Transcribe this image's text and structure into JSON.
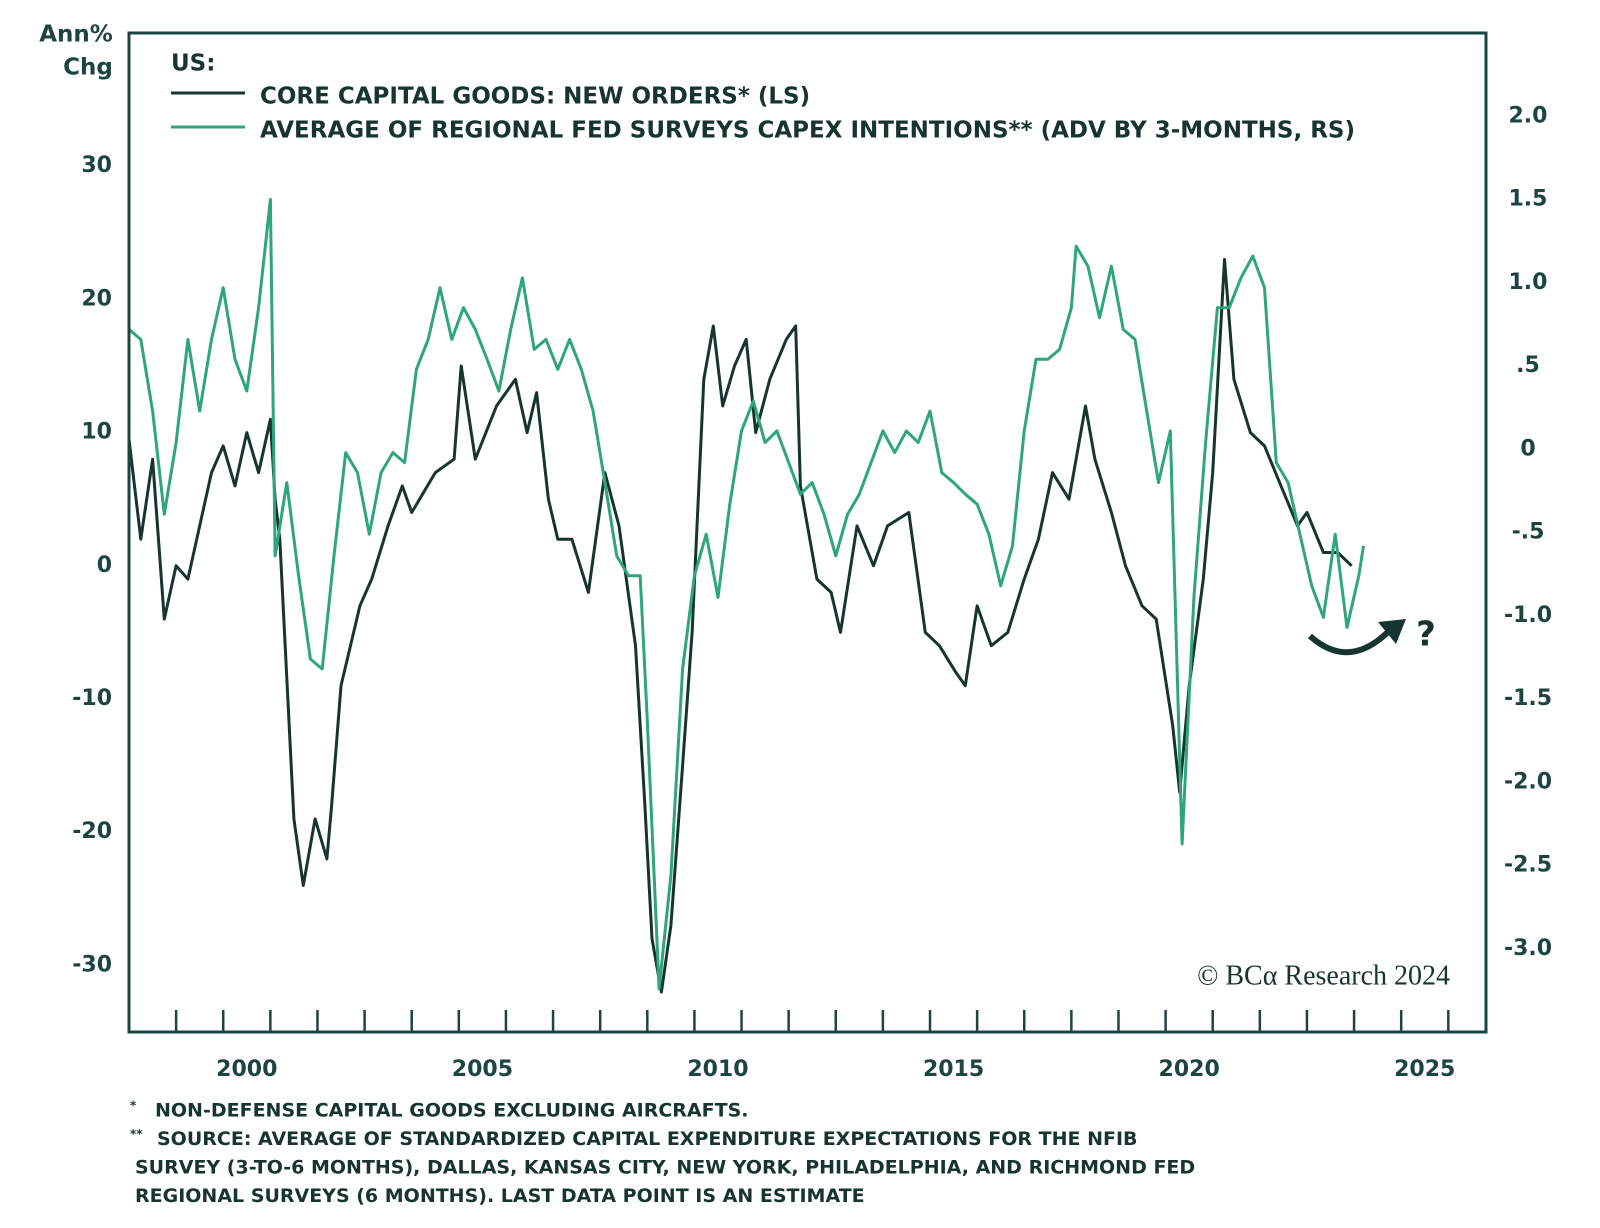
{
  "chart_data": {
    "type": "line",
    "title": "US:",
    "ylabel": [
      "Ann%",
      "Chg"
    ],
    "xlim": [
      1998,
      2026.8
    ],
    "xticks": [
      {
        "value": 2000.5,
        "label": "2000"
      },
      {
        "value": 2005.5,
        "label": "2005"
      },
      {
        "value": 2010.5,
        "label": "2010"
      },
      {
        "value": 2015.5,
        "label": "2015"
      },
      {
        "value": 2020.5,
        "label": "2020"
      },
      {
        "value": 2025.5,
        "label": "2025"
      }
    ],
    "xtick_marks": [
      1999,
      2000,
      2001,
      2002,
      2003,
      2004,
      2005,
      2006,
      2007,
      2008,
      2009,
      2010,
      2011,
      2012,
      2013,
      2014,
      2015,
      2016,
      2017,
      2018,
      2019,
      2020,
      2021,
      2022,
      2023,
      2024,
      2025,
      2026
    ],
    "ylim": [
      -35,
      40
    ],
    "yticks": [
      -30,
      -20,
      -10,
      0,
      10,
      20,
      30
    ],
    "y2lim": [
      -3.5,
      2.5
    ],
    "y2ticks": [
      {
        "value": -3.0,
        "label": "-3.0"
      },
      {
        "value": -2.5,
        "label": "-2.5"
      },
      {
        "value": -2.0,
        "label": "-2.0"
      },
      {
        "value": -1.5,
        "label": "-1.5"
      },
      {
        "value": -1.0,
        "label": "-1.0"
      },
      {
        "value": -0.5,
        "label": "-.5"
      },
      0,
      {
        "value": 0.5,
        "label": ".5"
      },
      {
        "value": 1.0,
        "label": "1.0"
      },
      {
        "value": 1.5,
        "label": "1.5"
      },
      {
        "value": 2.0,
        "label": "2.0"
      }
    ],
    "series": [
      {
        "name": "CORE CAPITAL GOODS: NEW ORDERS* (LS)",
        "color": "#17352f",
        "x": [
          1998.0,
          1998.25,
          1998.5,
          1998.75,
          1999.0,
          1999.25,
          1999.5,
          1999.75,
          2000.0,
          2000.25,
          2000.5,
          2000.75,
          2001.0,
          2001.1,
          2001.2,
          2001.3,
          2001.5,
          2001.7,
          2001.95,
          2002.2,
          2002.3,
          2002.5,
          2002.7,
          2002.9,
          2003.15,
          2003.5,
          2003.8,
          2004.0,
          2004.5,
          2004.9,
          2005.05,
          2005.35,
          2005.8,
          2006.2,
          2006.45,
          2006.65,
          2006.9,
          2007.1,
          2007.4,
          2007.75,
          2008.1,
          2008.4,
          2008.75,
          2008.95,
          2009.1,
          2009.3,
          2009.5,
          2009.75,
          2009.95,
          2010.2,
          2010.4,
          2010.6,
          2010.85,
          2011.1,
          2011.3,
          2011.6,
          2011.95,
          2012.15,
          2012.25,
          2012.6,
          2012.9,
          2013.1,
          2013.45,
          2013.8,
          2014.1,
          2014.55,
          2014.9,
          2015.2,
          2015.55,
          2015.75,
          2016.0,
          2016.3,
          2016.65,
          2017.0,
          2017.3,
          2017.6,
          2017.95,
          2018.3,
          2018.5,
          2018.85,
          2019.15,
          2019.5,
          2019.8,
          2020.15,
          2020.3,
          2020.5,
          2020.8,
          2021.0,
          2021.25,
          2021.45,
          2021.8,
          2022.1,
          2022.45,
          2022.8,
          2023.0,
          2023.35,
          2023.65,
          2023.95
        ],
        "values": [
          9.5,
          2,
          8,
          -4,
          0,
          -1,
          3,
          7,
          9,
          6,
          10,
          7,
          11,
          5,
          2,
          -5,
          -19,
          -24,
          -19,
          -22,
          -18,
          -9,
          -6,
          -3,
          -1,
          3,
          6,
          4,
          7,
          8,
          15,
          8,
          12,
          14,
          10,
          13,
          5,
          2,
          2,
          -2,
          7,
          3,
          -6,
          -18,
          -28,
          -32,
          -27,
          -15,
          -5,
          14,
          18,
          12,
          15,
          17,
          10,
          14,
          17,
          18,
          6,
          -1,
          -2,
          -5,
          3,
          0,
          3,
          4,
          -5,
          -6,
          -8,
          -9,
          -3,
          -6,
          -5,
          -1,
          2,
          7,
          5,
          12,
          8,
          4,
          0,
          -3,
          -4,
          -12,
          -17,
          -9,
          -1,
          7,
          23,
          14,
          10,
          9,
          6,
          3,
          4,
          1,
          1,
          0
        ]
      },
      {
        "name": "AVERAGE OF REGIONAL FED SURVEYS CAPEX INTENTIONS** (ADV BY 3-MONTHS, RS)",
        "color": "#2ea57a",
        "axis": "y2",
        "x": [
          1998.0,
          1998.25,
          1998.5,
          1998.75,
          1999.0,
          1999.25,
          1999.5,
          1999.75,
          2000.0,
          2000.25,
          2000.5,
          2000.75,
          2001.0,
          2001.1,
          2001.35,
          2001.6,
          2001.85,
          2002.1,
          2002.35,
          2002.6,
          2002.85,
          2003.1,
          2003.35,
          2003.6,
          2003.85,
          2004.1,
          2004.35,
          2004.6,
          2004.85,
          2005.1,
          2005.35,
          2005.6,
          2005.85,
          2006.1,
          2006.35,
          2006.6,
          2006.85,
          2007.1,
          2007.35,
          2007.6,
          2007.85,
          2008.1,
          2008.35,
          2008.6,
          2008.85,
          2009.0,
          2009.25,
          2009.5,
          2009.75,
          2010.0,
          2010.25,
          2010.5,
          2010.75,
          2011.0,
          2011.25,
          2011.5,
          2011.75,
          2012.0,
          2012.25,
          2012.5,
          2012.75,
          2013.0,
          2013.25,
          2013.5,
          2013.75,
          2014.0,
          2014.25,
          2014.5,
          2014.75,
          2015.0,
          2015.25,
          2015.5,
          2015.75,
          2016.0,
          2016.25,
          2016.5,
          2016.75,
          2017.0,
          2017.25,
          2017.5,
          2017.75,
          2018.0,
          2018.1,
          2018.35,
          2018.6,
          2018.85,
          2019.1,
          2019.35,
          2019.6,
          2019.85,
          2020.1,
          2020.35,
          2020.6,
          2020.85,
          2021.1,
          2021.35,
          2021.6,
          2021.85,
          2022.1,
          2022.35,
          2022.6,
          2022.85,
          2023.1,
          2023.35,
          2023.6,
          2023.85,
          2024.1,
          2024.2
        ],
        "values": [
          0.72,
          0.66,
          0.23,
          -0.39,
          0.04,
          0.66,
          0.23,
          0.66,
          0.97,
          0.54,
          0.35,
          0.85,
          1.5,
          -0.64,
          -0.2,
          -0.76,
          -1.26,
          -1.32,
          -0.64,
          -0.02,
          -0.14,
          -0.51,
          -0.14,
          -0.02,
          -0.08,
          0.48,
          0.66,
          0.97,
          0.66,
          0.85,
          0.72,
          0.54,
          0.35,
          0.72,
          1.03,
          0.6,
          0.66,
          0.48,
          0.66,
          0.48,
          0.23,
          -0.2,
          -0.64,
          -0.76,
          -0.76,
          -1.63,
          -3.24,
          -2.56,
          -1.32,
          -0.76,
          -0.51,
          -0.89,
          -0.33,
          0.11,
          0.29,
          0.04,
          0.11,
          -0.08,
          -0.27,
          -0.2,
          -0.39,
          -0.64,
          -0.39,
          -0.27,
          -0.08,
          0.11,
          -0.02,
          0.11,
          0.04,
          0.23,
          -0.14,
          -0.2,
          -0.27,
          -0.33,
          -0.51,
          -0.82,
          -0.58,
          0.11,
          0.54,
          0.54,
          0.6,
          0.85,
          1.22,
          1.1,
          0.79,
          1.1,
          0.72,
          0.66,
          0.23,
          -0.2,
          0.11,
          -2.37,
          -0.89,
          0.04,
          0.85,
          0.85,
          1.03,
          1.16,
          0.97,
          -0.08,
          -0.2,
          -0.51,
          -0.82,
          -1.01,
          -0.51,
          -1.07,
          -0.76,
          -0.58
        ]
      }
    ],
    "annotation": "?",
    "copyright": "© BCα Research 2024",
    "footnotes": [
      {
        "mark": "*",
        "text": "NON-DEFENSE CAPITAL GOODS EXCLUDING AIRCRAFTS."
      },
      {
        "mark": "**",
        "text": "SOURCE: AVERAGE OF STANDARDIZED CAPITAL EXPENDITURE EXPECTATIONS FOR THE NFIB"
      },
      {
        "text": "SURVEY (3-TO-6 MONTHS), DALLAS, KANSAS CITY, NEW YORK, PHILADELPHIA, AND RICHMOND FED"
      },
      {
        "text": "REGIONAL SURVEYS (6 MONTHS). LAST DATA POINT IS AN ESTIMATE"
      }
    ]
  }
}
